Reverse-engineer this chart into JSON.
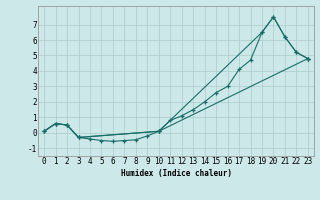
{
  "xlabel": "Humidex (Indice chaleur)",
  "bg_color": "#cce8e8",
  "grid_color": "#aacccc",
  "line_color": "#1a6e6a",
  "xlim": [
    -0.5,
    23.5
  ],
  "ylim": [
    -1.5,
    8.2
  ],
  "yticks": [
    -1,
    0,
    1,
    2,
    3,
    4,
    5,
    6,
    7
  ],
  "xticks": [
    0,
    1,
    2,
    3,
    4,
    5,
    6,
    7,
    8,
    9,
    10,
    11,
    12,
    13,
    14,
    15,
    16,
    17,
    18,
    19,
    20,
    21,
    22,
    23
  ],
  "series1_x": [
    0,
    1,
    2,
    3,
    4,
    5,
    6,
    7,
    8,
    9,
    10,
    23
  ],
  "series1_y": [
    0.1,
    0.6,
    0.5,
    -0.3,
    -0.4,
    -0.5,
    -0.55,
    -0.5,
    -0.45,
    -0.2,
    0.1,
    4.8
  ],
  "series2_x": [
    0,
    1,
    2,
    3,
    10,
    19,
    20,
    21,
    22,
    23
  ],
  "series2_y": [
    0.1,
    0.6,
    0.5,
    -0.3,
    0.1,
    6.5,
    7.5,
    6.2,
    5.2,
    4.8
  ],
  "series3_x": [
    0,
    1,
    2,
    3,
    10,
    11,
    12,
    13,
    14,
    15,
    16,
    17,
    18,
    19,
    20,
    21,
    22,
    23
  ],
  "series3_y": [
    0.1,
    0.6,
    0.5,
    -0.3,
    0.1,
    0.8,
    1.1,
    1.5,
    2.0,
    2.6,
    3.0,
    4.1,
    4.7,
    6.5,
    7.5,
    6.2,
    5.2,
    4.8
  ],
  "xlabel_fontsize": 5.5,
  "tick_fontsize": 5.5
}
